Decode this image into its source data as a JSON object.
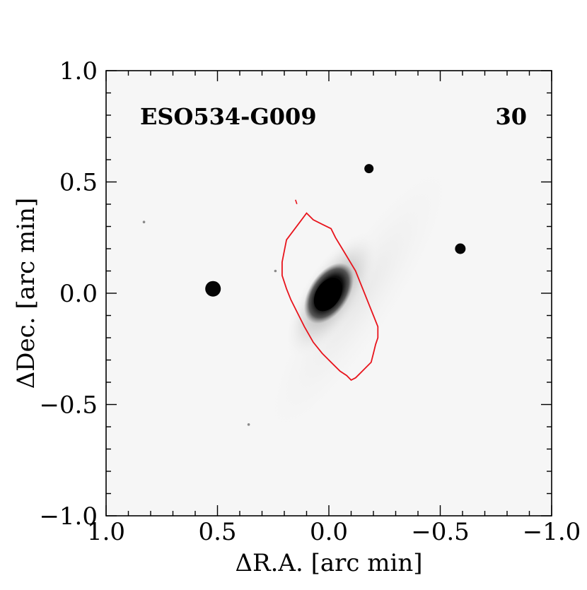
{
  "chart_data": {
    "type": "image",
    "object_name": "ESO534-G009",
    "panel_number": "30",
    "xlabel": "ΔR.A. [arc min]",
    "ylabel": "ΔDec. [arc min]",
    "xlim": [
      1.0,
      -1.0
    ],
    "ylim": [
      -1.0,
      1.0
    ],
    "x_ticks": [
      1.0,
      0.5,
      0.0,
      -0.5,
      -1.0
    ],
    "x_tick_labels": [
      "1.0",
      "0.5",
      "0.0",
      "−0.5",
      "−1.0"
    ],
    "y_ticks": [
      -1.0,
      -0.5,
      0.0,
      0.5,
      1.0
    ],
    "y_tick_labels": [
      "−1.0",
      "−0.5",
      "0.0",
      "0.5",
      "1.0"
    ],
    "image_colormap": "inverted grayscale",
    "contour_color": "#e8141c",
    "galaxy_center": [
      0.0,
      0.0
    ],
    "stars": [
      {
        "x": 0.52,
        "y": 0.02
      },
      {
        "x": -0.18,
        "y": 0.56
      },
      {
        "x": -0.59,
        "y": 0.2
      }
    ],
    "contour": [
      [
        0.1,
        0.36
      ],
      [
        0.07,
        0.33
      ],
      [
        0.03,
        0.31
      ],
      [
        -0.01,
        0.29
      ],
      [
        -0.03,
        0.25
      ],
      [
        -0.06,
        0.2
      ],
      [
        -0.09,
        0.15
      ],
      [
        -0.12,
        0.1
      ],
      [
        -0.14,
        0.05
      ],
      [
        -0.16,
        0.0
      ],
      [
        -0.18,
        -0.05
      ],
      [
        -0.2,
        -0.1
      ],
      [
        -0.22,
        -0.15
      ],
      [
        -0.22,
        -0.2
      ],
      [
        -0.21,
        -0.23
      ],
      [
        -0.2,
        -0.27
      ],
      [
        -0.19,
        -0.31
      ],
      [
        -0.17,
        -0.33
      ],
      [
        -0.15,
        -0.35
      ],
      [
        -0.12,
        -0.38
      ],
      [
        -0.1,
        -0.39
      ],
      [
        -0.08,
        -0.37
      ],
      [
        -0.05,
        -0.35
      ],
      [
        -0.01,
        -0.31
      ],
      [
        0.03,
        -0.27
      ],
      [
        0.07,
        -0.22
      ],
      [
        0.11,
        -0.15
      ],
      [
        0.14,
        -0.09
      ],
      [
        0.17,
        -0.03
      ],
      [
        0.19,
        0.02
      ],
      [
        0.21,
        0.08
      ],
      [
        0.21,
        0.14
      ],
      [
        0.2,
        0.19
      ],
      [
        0.19,
        0.24
      ],
      [
        0.16,
        0.28
      ],
      [
        0.13,
        0.32
      ],
      [
        0.1,
        0.36
      ]
    ]
  }
}
